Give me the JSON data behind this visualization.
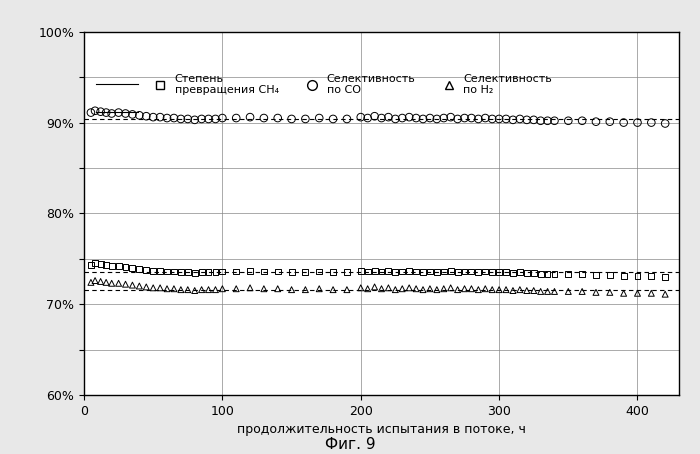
{
  "xlabel": "продолжительность испытания в потоке, ч",
  "fig_label": "Фиг. 9",
  "ylim": [
    0.6,
    1.0
  ],
  "xlim": [
    0,
    430
  ],
  "yticks": [
    0.6,
    0.65,
    0.7,
    0.75,
    0.8,
    0.85,
    0.9,
    0.95,
    1.0
  ],
  "ytick_labels": [
    "60%",
    "",
    "70%",
    "",
    "80%",
    "",
    "90%",
    "",
    "100%"
  ],
  "xticks": [
    0,
    100,
    200,
    300,
    400
  ],
  "background_color": "#e8e8e8",
  "plot_bg_color": "#ffffff",
  "grid_color": "#888888",
  "legend_labels": [
    "Степень\nпревращения CH₄",
    "Селективность\nпо CO",
    "Селективность\nпо H₂"
  ],
  "co_selectivity_x": [
    5,
    8,
    12,
    16,
    20,
    25,
    30,
    35,
    40,
    45,
    50,
    55,
    60,
    65,
    70,
    75,
    80,
    85,
    90,
    95,
    100,
    110,
    120,
    130,
    140,
    150,
    160,
    170,
    180,
    190,
    200,
    205,
    210,
    215,
    220,
    225,
    230,
    235,
    240,
    245,
    250,
    255,
    260,
    265,
    270,
    275,
    280,
    285,
    290,
    295,
    300,
    305,
    310,
    315,
    320,
    325,
    330,
    335,
    340,
    350,
    360,
    370,
    380,
    390,
    400,
    410,
    420
  ],
  "co_selectivity_y": [
    0.911,
    0.913,
    0.912,
    0.911,
    0.91,
    0.911,
    0.91,
    0.909,
    0.908,
    0.907,
    0.906,
    0.906,
    0.905,
    0.905,
    0.904,
    0.904,
    0.903,
    0.904,
    0.904,
    0.904,
    0.905,
    0.905,
    0.906,
    0.905,
    0.905,
    0.904,
    0.904,
    0.905,
    0.904,
    0.904,
    0.906,
    0.905,
    0.907,
    0.905,
    0.906,
    0.904,
    0.905,
    0.906,
    0.905,
    0.904,
    0.905,
    0.904,
    0.905,
    0.906,
    0.904,
    0.905,
    0.905,
    0.904,
    0.905,
    0.904,
    0.904,
    0.904,
    0.903,
    0.904,
    0.903,
    0.903,
    0.902,
    0.902,
    0.902,
    0.902,
    0.902,
    0.901,
    0.901,
    0.9,
    0.9,
    0.9,
    0.899
  ],
  "ch4_conversion_x": [
    5,
    8,
    12,
    16,
    20,
    25,
    30,
    35,
    40,
    45,
    50,
    55,
    60,
    65,
    70,
    75,
    80,
    85,
    90,
    95,
    100,
    110,
    120,
    130,
    140,
    150,
    160,
    170,
    180,
    190,
    200,
    205,
    210,
    215,
    220,
    225,
    230,
    235,
    240,
    245,
    250,
    255,
    260,
    265,
    270,
    275,
    280,
    285,
    290,
    295,
    300,
    305,
    310,
    315,
    320,
    325,
    330,
    335,
    340,
    350,
    360,
    370,
    380,
    390,
    400,
    410,
    420
  ],
  "ch4_conversion_y": [
    0.743,
    0.745,
    0.744,
    0.743,
    0.742,
    0.742,
    0.741,
    0.74,
    0.739,
    0.738,
    0.737,
    0.737,
    0.736,
    0.736,
    0.735,
    0.735,
    0.734,
    0.735,
    0.735,
    0.735,
    0.736,
    0.736,
    0.737,
    0.736,
    0.736,
    0.735,
    0.735,
    0.736,
    0.735,
    0.735,
    0.737,
    0.736,
    0.737,
    0.736,
    0.737,
    0.735,
    0.736,
    0.737,
    0.736,
    0.735,
    0.736,
    0.735,
    0.736,
    0.737,
    0.735,
    0.736,
    0.736,
    0.735,
    0.736,
    0.735,
    0.735,
    0.735,
    0.734,
    0.735,
    0.734,
    0.734,
    0.733,
    0.733,
    0.733,
    0.733,
    0.733,
    0.732,
    0.732,
    0.731,
    0.731,
    0.731,
    0.73
  ],
  "h2_selectivity_x": [
    5,
    8,
    12,
    16,
    20,
    25,
    30,
    35,
    40,
    45,
    50,
    55,
    60,
    65,
    70,
    75,
    80,
    85,
    90,
    95,
    100,
    110,
    120,
    130,
    140,
    150,
    160,
    170,
    180,
    190,
    200,
    205,
    210,
    215,
    220,
    225,
    230,
    235,
    240,
    245,
    250,
    255,
    260,
    265,
    270,
    275,
    280,
    285,
    290,
    295,
    300,
    305,
    310,
    315,
    320,
    325,
    330,
    335,
    340,
    350,
    360,
    370,
    380,
    390,
    400,
    410,
    420
  ],
  "h2_selectivity_y": [
    0.724,
    0.726,
    0.725,
    0.724,
    0.723,
    0.723,
    0.722,
    0.721,
    0.72,
    0.719,
    0.718,
    0.718,
    0.717,
    0.717,
    0.716,
    0.716,
    0.715,
    0.716,
    0.716,
    0.716,
    0.717,
    0.717,
    0.718,
    0.717,
    0.717,
    0.716,
    0.716,
    0.717,
    0.716,
    0.716,
    0.718,
    0.717,
    0.719,
    0.717,
    0.718,
    0.716,
    0.717,
    0.718,
    0.717,
    0.716,
    0.717,
    0.716,
    0.717,
    0.718,
    0.716,
    0.717,
    0.717,
    0.716,
    0.717,
    0.716,
    0.716,
    0.716,
    0.715,
    0.716,
    0.715,
    0.715,
    0.714,
    0.714,
    0.714,
    0.714,
    0.714,
    0.713,
    0.713,
    0.712,
    0.712,
    0.712,
    0.711
  ],
  "trend_co_y": 0.904,
  "trend_ch4_y": 0.735,
  "trend_h2_y": 0.716,
  "marker_color": "#000000",
  "line_color": "#000000"
}
